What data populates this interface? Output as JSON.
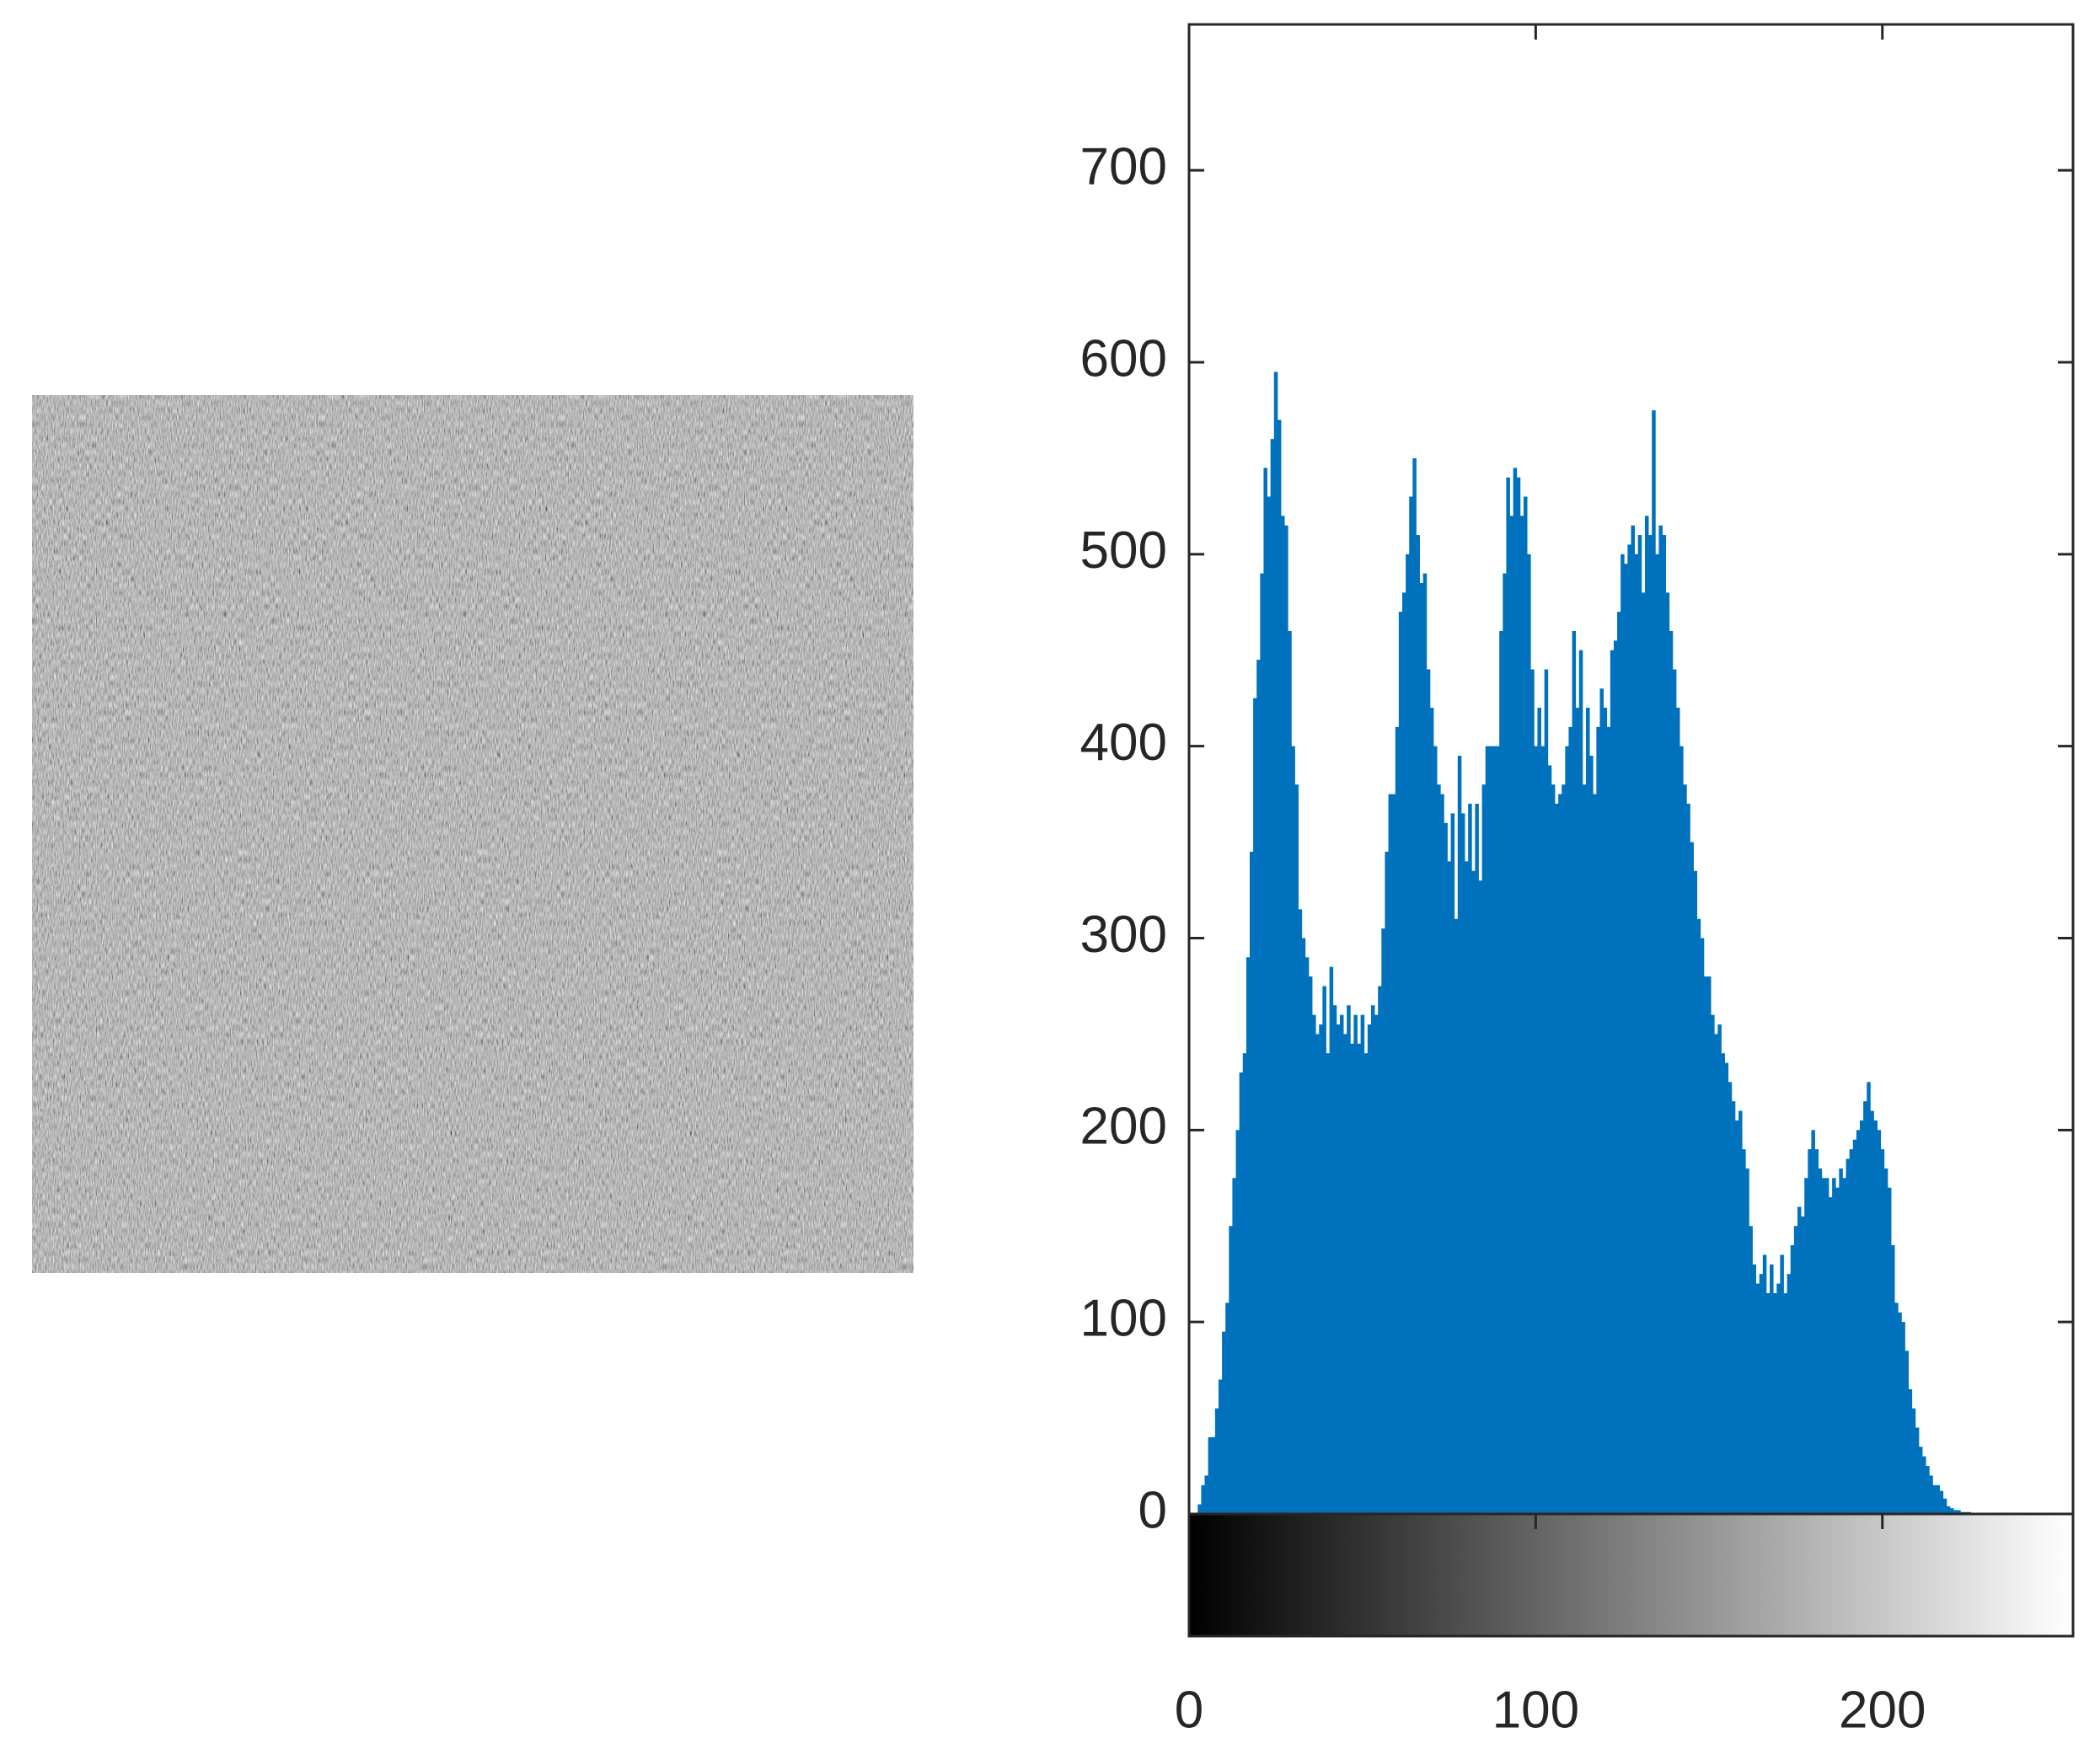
{
  "chart_data": {
    "type": "histogram",
    "color": "#0072bd",
    "xlim": [
      0,
      255
    ],
    "xticks": [
      0,
      100,
      200
    ],
    "ylim": [
      0,
      776
    ],
    "yticks": [
      0,
      100,
      200,
      300,
      400,
      500,
      600,
      700
    ],
    "x": [
      0,
      1,
      2,
      3,
      4,
      5,
      6,
      7,
      8,
      9,
      10,
      11,
      12,
      13,
      14,
      15,
      16,
      17,
      18,
      19,
      20,
      21,
      22,
      23,
      24,
      25,
      26,
      27,
      28,
      29,
      30,
      31,
      32,
      33,
      34,
      35,
      36,
      37,
      38,
      39,
      40,
      41,
      42,
      43,
      44,
      45,
      46,
      47,
      48,
      49,
      50,
      51,
      52,
      53,
      54,
      55,
      56,
      57,
      58,
      59,
      60,
      61,
      62,
      63,
      64,
      65,
      66,
      67,
      68,
      69,
      70,
      71,
      72,
      73,
      74,
      75,
      76,
      77,
      78,
      79,
      80,
      81,
      82,
      83,
      84,
      85,
      86,
      87,
      88,
      89,
      90,
      91,
      92,
      93,
      94,
      95,
      96,
      97,
      98,
      99,
      100,
      101,
      102,
      103,
      104,
      105,
      106,
      107,
      108,
      109,
      110,
      111,
      112,
      113,
      114,
      115,
      116,
      117,
      118,
      119,
      120,
      121,
      122,
      123,
      124,
      125,
      126,
      127,
      128,
      129,
      130,
      131,
      132,
      133,
      134,
      135,
      136,
      137,
      138,
      139,
      140,
      141,
      142,
      143,
      144,
      145,
      146,
      147,
      148,
      149,
      150,
      151,
      152,
      153,
      154,
      155,
      156,
      157,
      158,
      159,
      160,
      161,
      162,
      163,
      164,
      165,
      166,
      167,
      168,
      169,
      170,
      171,
      172,
      173,
      174,
      175,
      176,
      177,
      178,
      179,
      180,
      181,
      182,
      183,
      184,
      185,
      186,
      187,
      188,
      189,
      190,
      191,
      192,
      193,
      194,
      195,
      196,
      197,
      198,
      199,
      200,
      201,
      202,
      203,
      204,
      205,
      206,
      207,
      208,
      209,
      210,
      211,
      212,
      213,
      214,
      215,
      216,
      217,
      218,
      219,
      220,
      221,
      222,
      223,
      224,
      225,
      226,
      227,
      228,
      229,
      230,
      231,
      232,
      233,
      234,
      235,
      236,
      237,
      238,
      239,
      240,
      241,
      242,
      243,
      244,
      245,
      246,
      247,
      248,
      249,
      250,
      251,
      252,
      253,
      254,
      255
    ],
    "values": [
      0,
      0,
      0,
      5,
      15,
      20,
      40,
      40,
      55,
      70,
      95,
      110,
      150,
      175,
      200,
      230,
      240,
      290,
      345,
      425,
      445,
      490,
      545,
      530,
      560,
      595,
      570,
      520,
      515,
      460,
      400,
      380,
      315,
      300,
      290,
      280,
      260,
      250,
      255,
      275,
      240,
      285,
      265,
      255,
      260,
      250,
      265,
      245,
      260,
      245,
      260,
      240,
      255,
      265,
      260,
      275,
      305,
      345,
      375,
      375,
      410,
      470,
      480,
      500,
      530,
      550,
      510,
      485,
      490,
      440,
      420,
      400,
      380,
      375,
      360,
      340,
      365,
      310,
      395,
      365,
      340,
      370,
      335,
      370,
      330,
      380,
      400,
      400,
      400,
      400,
      460,
      490,
      540,
      520,
      545,
      540,
      520,
      530,
      500,
      440,
      400,
      420,
      400,
      440,
      390,
      380,
      370,
      375,
      380,
      400,
      410,
      460,
      420,
      450,
      380,
      420,
      395,
      375,
      410,
      430,
      420,
      410,
      450,
      455,
      470,
      500,
      495,
      505,
      515,
      500,
      510,
      480,
      520,
      510,
      575,
      500,
      515,
      510,
      480,
      460,
      440,
      420,
      400,
      380,
      370,
      350,
      335,
      310,
      300,
      280,
      280,
      260,
      250,
      255,
      240,
      235,
      225,
      215,
      205,
      210,
      190,
      180,
      150,
      130,
      120,
      125,
      135,
      115,
      130,
      115,
      120,
      135,
      115,
      125,
      140,
      150,
      160,
      155,
      175,
      190,
      200,
      190,
      180,
      175,
      175,
      165,
      175,
      170,
      180,
      175,
      185,
      190,
      195,
      200,
      205,
      215,
      225,
      210,
      205,
      200,
      190,
      180,
      170,
      140,
      110,
      105,
      100,
      85,
      65,
      55,
      45,
      35,
      30,
      25,
      20,
      15,
      15,
      12,
      8,
      4,
      3,
      2,
      2,
      1,
      1,
      1,
      0,
      0,
      0,
      0,
      0,
      0,
      0,
      0,
      0,
      0,
      0,
      0,
      0,
      0,
      0,
      0,
      0,
      0,
      0,
      0,
      0,
      0,
      0,
      0,
      0,
      0,
      0,
      0,
      0,
      0
    ]
  }
}
